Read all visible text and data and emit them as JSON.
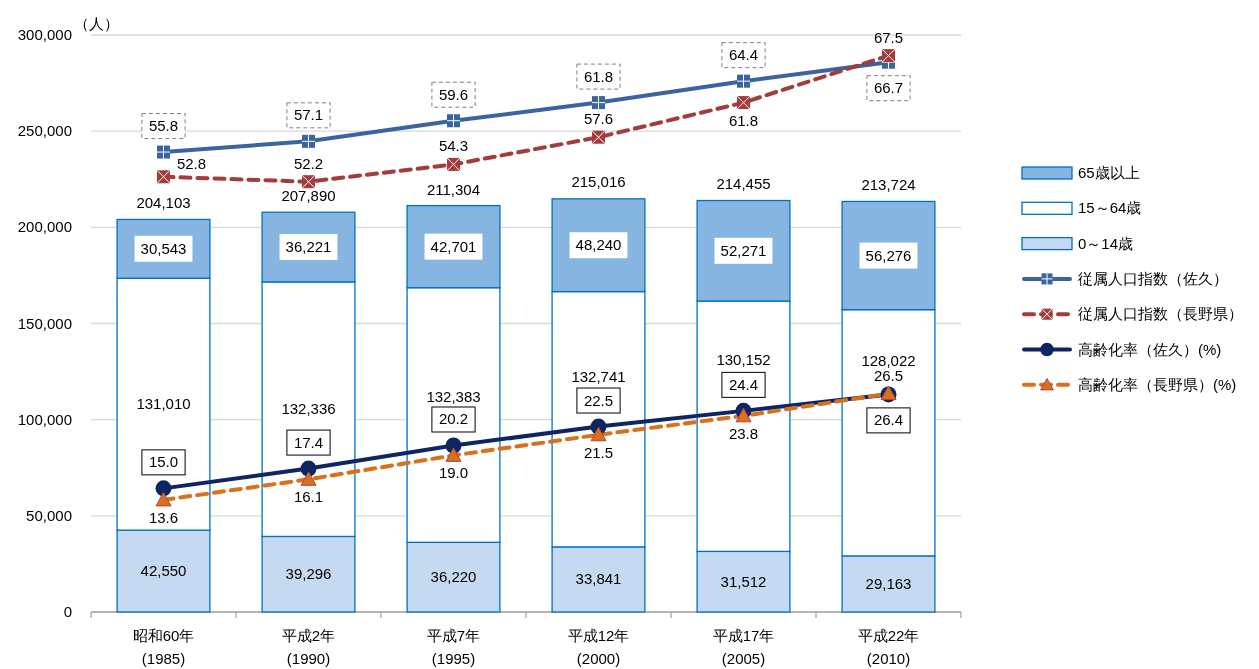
{
  "chart_data": {
    "type": "bar",
    "stacked": true,
    "ylabel": "（人）",
    "categories": [
      "昭和60年\n(1985)",
      "平成2年\n(1990)",
      "平成7年\n(1995)",
      "平成12年\n(2000)",
      "平成17年\n(2005)",
      "平成22年\n(2010)"
    ],
    "ylim": [
      0,
      300000
    ],
    "yticks": [
      0,
      {
        "value": 50000,
        "label": "50,000"
      },
      {
        "value": 100000,
        "label": "100,000"
      },
      {
        "value": 150000,
        "label": "150,000"
      },
      {
        "value": 200000,
        "label": "200,000"
      },
      {
        "value": 250000,
        "label": "250,000"
      },
      {
        "value": 300000,
        "label": "300,000"
      }
    ],
    "y2lim": [
      0,
      70
    ],
    "series": [
      {
        "name": "0～14歳",
        "color": "#c5d9f1",
        "values": [
          42550,
          39296,
          36220,
          33841,
          31512,
          29163
        ],
        "value_labels": [
          "42,550",
          "39,296",
          "36,220",
          "33,841",
          "31,512",
          "29,163"
        ]
      },
      {
        "name": "15～64歳",
        "color": "#ffffff",
        "values": [
          131010,
          132336,
          132383,
          132741,
          130152,
          128022
        ],
        "value_labels": [
          "131,010",
          "132,336",
          "132,383",
          "132,741",
          "130,152",
          "128,022"
        ]
      },
      {
        "name": "65歳以上",
        "color": "#85b5e0",
        "values": [
          30543,
          36221,
          42701,
          48240,
          52271,
          56276
        ],
        "value_labels": [
          "30,543",
          "36,221",
          "42,701",
          "48,240",
          "52,271",
          "56,276"
        ]
      },
      {
        "name": "従属人口指数（佐久）",
        "type": "line",
        "axis": "y2",
        "color": "#3a64a0",
        "marker": "square",
        "line_style": "solid",
        "values": [
          55.8,
          57.1,
          59.6,
          61.8,
          64.4,
          66.7
        ],
        "value_labels": [
          "55.8",
          "57.1",
          "59.6",
          "61.8",
          "64.4",
          "66.7"
        ]
      },
      {
        "name": "従属人口指数（長野県）",
        "type": "line",
        "axis": "y2",
        "color": "#a33c3c",
        "marker": "square",
        "line_style": "dashed",
        "values": [
          52.8,
          52.2,
          54.3,
          57.6,
          61.8,
          67.5
        ],
        "value_labels": [
          "52.8",
          "52.2",
          "54.3",
          "57.6",
          "61.8",
          "67.5"
        ]
      },
      {
        "name": "高齢化率（佐久）(%)",
        "type": "line",
        "axis": "y2",
        "color": "#0d2563",
        "marker": "circle",
        "line_style": "solid",
        "values": [
          15.0,
          17.4,
          20.2,
          22.5,
          24.4,
          26.4
        ],
        "value_labels": [
          "15.0",
          "17.4",
          "20.2",
          "22.5",
          "24.4",
          "26.4"
        ]
      },
      {
        "name": "高齢化率（長野県）(%)",
        "type": "line",
        "axis": "y2",
        "color": "#d8711e",
        "marker": "triangle",
        "line_style": "dashed",
        "values": [
          13.6,
          16.1,
          19.0,
          21.5,
          23.8,
          26.5
        ],
        "value_labels": [
          "13.6",
          "16.1",
          "19.0",
          "21.5",
          "23.8",
          "26.5"
        ]
      }
    ],
    "annotations": [
      {
        "text": "204,103",
        "x": "昭和60年\n(1985)",
        "y": 204103
      },
      {
        "text": "207,890",
        "x": "平成2年\n(1990)",
        "y": 207890
      },
      {
        "text": "211,304",
        "x": "平成7年\n(1995)",
        "y": 211304
      },
      {
        "text": "215,016",
        "x": "平成12年\n(2000)",
        "y": 215016
      },
      {
        "text": "214,455",
        "x": "平成17年\n(2005)",
        "y": 214455
      },
      {
        "text": "213,724",
        "x": "平成22年\n(2010)",
        "y": 213724
      }
    ],
    "grid": "y",
    "legend": "right"
  }
}
